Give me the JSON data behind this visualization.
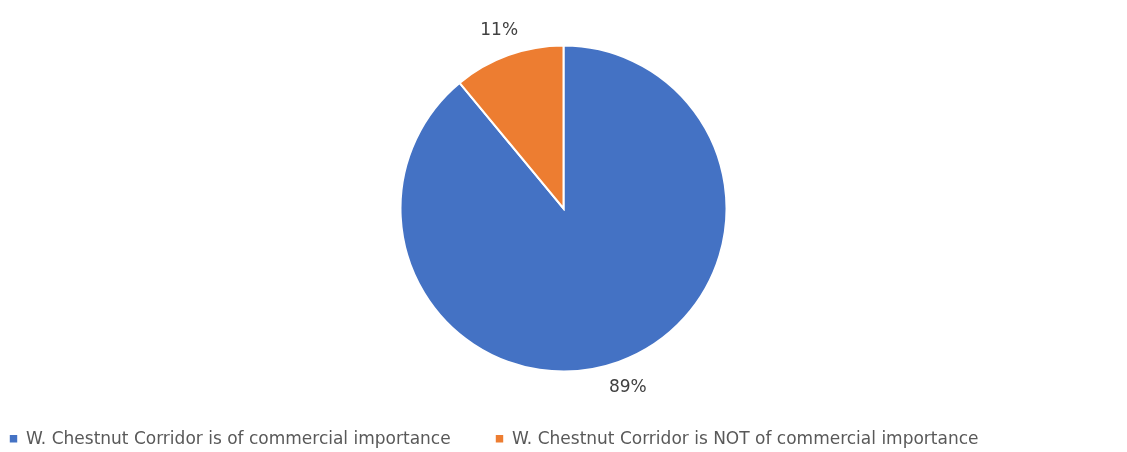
{
  "chart_data": {
    "type": "pie",
    "categories": [
      "W. Chestnut Corridor is of commercial importance",
      "W. Chestnut Corridor is NOT of commercial importance"
    ],
    "values": [
      89,
      11
    ],
    "colors": [
      "#4472c4",
      "#ed7d31"
    ],
    "value_labels": [
      "89%",
      "11%"
    ],
    "legend": "bottom"
  }
}
